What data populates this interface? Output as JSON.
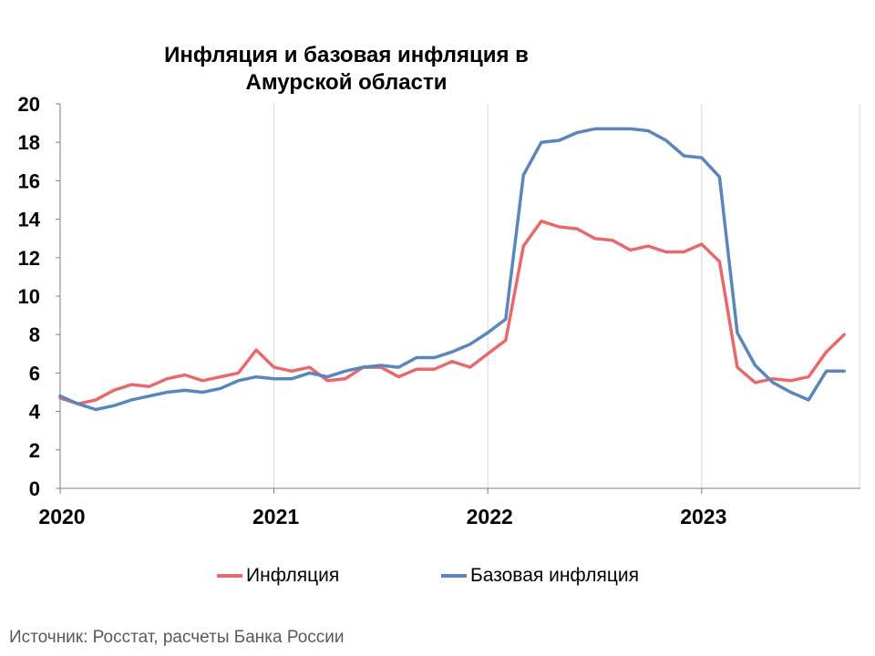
{
  "chart_data": {
    "type": "line",
    "title": "Инфляция и базовая инфляция в Амурской области",
    "ylim": [
      0,
      20
    ],
    "yticks": [
      "0",
      "2",
      "4",
      "6",
      "8",
      "10",
      "12",
      "14",
      "16",
      "18",
      "20"
    ],
    "xticks": [
      "2020",
      "2021",
      "2022",
      "2023"
    ],
    "grid": true,
    "legend_position": "bottom",
    "x": [
      "2020-01",
      "2020-02",
      "2020-03",
      "2020-04",
      "2020-05",
      "2020-06",
      "2020-07",
      "2020-08",
      "2020-09",
      "2020-10",
      "2020-11",
      "2020-12",
      "2021-01",
      "2021-02",
      "2021-03",
      "2021-04",
      "2021-05",
      "2021-06",
      "2021-07",
      "2021-08",
      "2021-09",
      "2021-10",
      "2021-11",
      "2021-12",
      "2022-01",
      "2022-02",
      "2022-03",
      "2022-04",
      "2022-05",
      "2022-06",
      "2022-07",
      "2022-08",
      "2022-09",
      "2022-10",
      "2022-11",
      "2022-12",
      "2023-01",
      "2023-02",
      "2023-03",
      "2023-04",
      "2023-05",
      "2023-06",
      "2023-07",
      "2023-08",
      "2023-09"
    ],
    "series": [
      {
        "name": "Инфляция",
        "color": "#e8696b",
        "values": [
          4.7,
          4.4,
          4.6,
          5.1,
          5.4,
          5.3,
          5.7,
          5.9,
          5.6,
          5.8,
          6.0,
          7.2,
          6.3,
          6.1,
          6.3,
          5.6,
          5.7,
          6.3,
          6.3,
          5.8,
          6.2,
          6.2,
          6.6,
          6.3,
          7.0,
          7.7,
          12.6,
          13.9,
          13.6,
          13.5,
          13.0,
          12.9,
          12.4,
          12.6,
          12.3,
          12.3,
          12.7,
          11.8,
          6.3,
          5.5,
          5.7,
          5.6,
          5.8,
          7.1,
          8.0
        ]
      },
      {
        "name": "Базовая инфляция",
        "color": "#5a86bb",
        "values": [
          4.8,
          4.4,
          4.1,
          4.3,
          4.6,
          4.8,
          5.0,
          5.1,
          5.0,
          5.2,
          5.6,
          5.8,
          5.7,
          5.7,
          6.0,
          5.8,
          6.1,
          6.3,
          6.4,
          6.3,
          6.8,
          6.8,
          7.1,
          7.5,
          8.1,
          8.8,
          16.3,
          18.0,
          18.1,
          18.5,
          18.7,
          18.7,
          18.7,
          18.6,
          18.1,
          17.3,
          17.2,
          16.2,
          8.1,
          6.4,
          5.5,
          5.0,
          4.6,
          6.1,
          6.1
        ]
      }
    ]
  },
  "source_text": "Источник: Росстат, расчеты Банка России"
}
